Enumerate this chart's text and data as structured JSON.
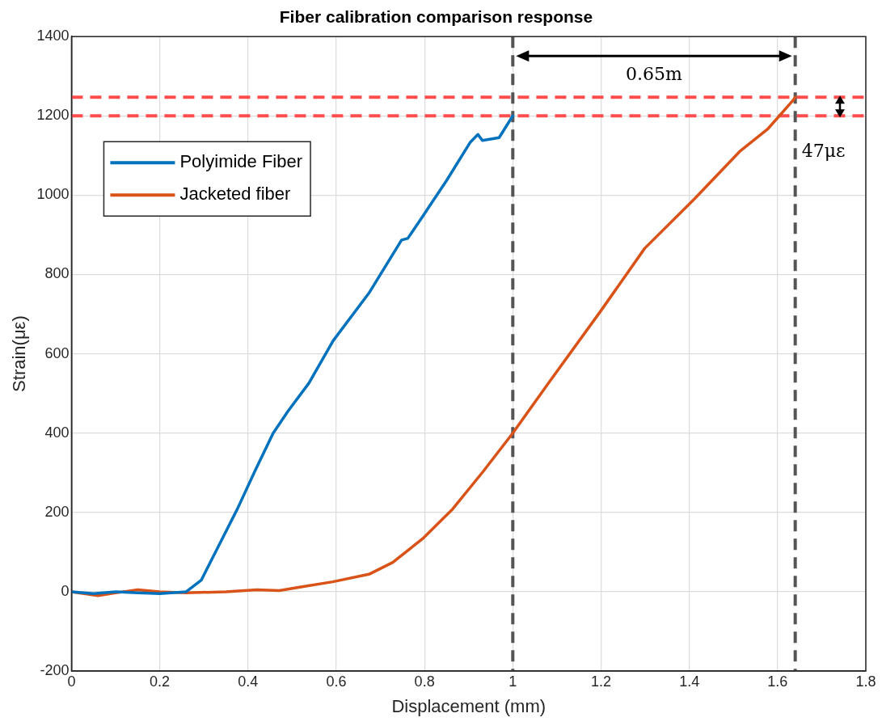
{
  "chart_data": {
    "type": "line",
    "title": "Fiber calibration comparison response",
    "xlabel": "Displacement (mm)",
    "ylabel": "Strain(με)",
    "xlim": [
      0,
      1.8
    ],
    "xticks": [
      0,
      0.2,
      0.4,
      0.6,
      0.8,
      1,
      1.2,
      1.4,
      1.6,
      1.8
    ],
    "ylim": [
      -200,
      1400
    ],
    "yticks": [
      -200,
      0,
      200,
      400,
      600,
      800,
      1000,
      1200,
      1400
    ],
    "grid": true,
    "legend": "top left",
    "marker": "none",
    "line_style": "solid",
    "series": [
      {
        "name": "Polyimide Fiber",
        "color": "#0072bd",
        "x": [
          0,
          0.05,
          0.1,
          0.15,
          0.2,
          0.26,
          0.294,
          0.335,
          0.376,
          0.416,
          0.457,
          0.491,
          0.538,
          0.593,
          0.674,
          0.748,
          0.762,
          0.796,
          0.85,
          0.904,
          0.921,
          0.931,
          0.969,
          1.0
        ],
        "values": [
          0,
          -5,
          0,
          -3,
          -5,
          0,
          29,
          119,
          209,
          305,
          400,
          456,
          526,
          633,
          753,
          887,
          891,
          947,
          1037,
          1134,
          1153,
          1138,
          1145,
          1200
        ]
      },
      {
        "name": "Jacketed fiber",
        "color": "#d95319",
        "x": [
          0,
          0.06,
          0.1,
          0.15,
          0.2,
          0.26,
          0.35,
          0.42,
          0.471,
          0.52,
          0.592,
          0.674,
          0.728,
          0.796,
          0.864,
          0.932,
          1.0,
          1.084,
          1.198,
          1.299,
          1.413,
          1.514,
          1.577,
          1.635,
          1.64
        ],
        "values": [
          0,
          -10,
          -3,
          5,
          0,
          -3,
          0,
          5,
          3,
          12,
          25,
          44,
          74,
          134,
          209,
          302,
          400,
          531,
          706,
          866,
          992,
          1110,
          1166,
          1239,
          1247
        ]
      }
    ],
    "ref_lines": [
      {
        "axis": "y",
        "value": 1200,
        "color": "#ff4d4d",
        "line_style": "dashed"
      },
      {
        "axis": "y",
        "value": 1247,
        "color": "#ff4d4d",
        "line_style": "dashed"
      },
      {
        "axis": "x",
        "value": 1.0,
        "color": "#555555",
        "line_style": "dashed"
      },
      {
        "axis": "x",
        "value": 1.64,
        "color": "#555555",
        "line_style": "dashed"
      }
    ],
    "annotations": [
      "0.65m",
      "47με"
    ]
  }
}
